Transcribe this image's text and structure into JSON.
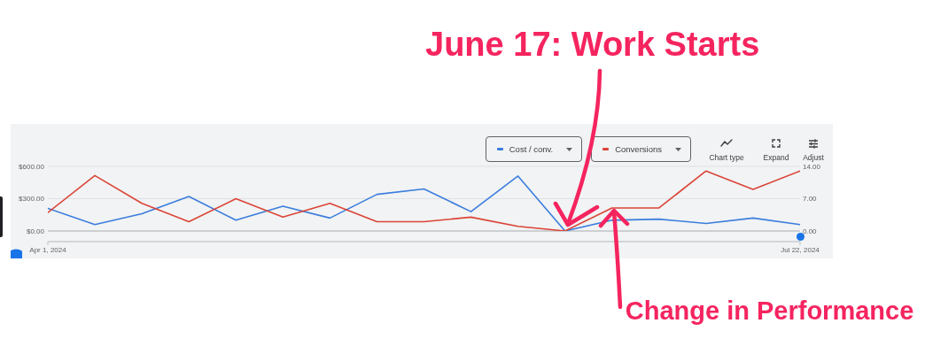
{
  "chart_data": {
    "type": "line",
    "x": [
      "2024-04-01",
      "2024-04-08",
      "2024-04-15",
      "2024-04-22",
      "2024-04-29",
      "2024-05-06",
      "2024-05-13",
      "2024-05-20",
      "2024-05-27",
      "2024-06-03",
      "2024-06-10",
      "2024-06-17",
      "2024-06-24",
      "2024-07-01",
      "2024-07-08",
      "2024-07-15",
      "2024-07-22"
    ],
    "series": [
      {
        "name": "Cost / conv.",
        "color": "#3b7ddd",
        "values": [
          210,
          60,
          160,
          320,
          100,
          230,
          120,
          340,
          390,
          180,
          510,
          0,
          100,
          110,
          70,
          120,
          60
        ]
      },
      {
        "name": "Conversions",
        "color": "#db4437",
        "axis": "y2",
        "values": [
          4,
          12,
          6,
          2,
          7,
          3,
          6,
          2,
          2,
          3,
          1,
          0,
          5,
          5,
          13,
          9,
          13
        ]
      }
    ],
    "xlim": [
      "2024-04-01",
      "2024-07-22"
    ],
    "xticks": [
      {
        "value": "2024-04-01",
        "label": "Apr 1, 2024"
      },
      {
        "value": "2024-07-22",
        "label": "Jul 22, 2024"
      }
    ],
    "ylim": [
      0,
      600
    ],
    "yticks": [
      {
        "value": 0,
        "label": "$0.00"
      },
      {
        "value": 300,
        "label": "$300.00"
      },
      {
        "value": 600,
        "label": "$600.00"
      }
    ],
    "y2lim": [
      0,
      14
    ],
    "y2ticks": [
      {
        "value": 0,
        "label": "0.00"
      },
      {
        "value": 7,
        "label": "7.00"
      },
      {
        "value": 14,
        "label": "14.00"
      }
    ],
    "grid": "y",
    "legend": "top right",
    "line_style": "solid",
    "annotations": [
      {
        "text": "June 17: Work Starts",
        "x": "2024-06-17",
        "y": 0
      },
      {
        "text": "Change in Performance",
        "x": "2024-06-24",
        "y": 200
      },
      "Chart type",
      "Expand",
      "Adjust"
    ]
  }
}
